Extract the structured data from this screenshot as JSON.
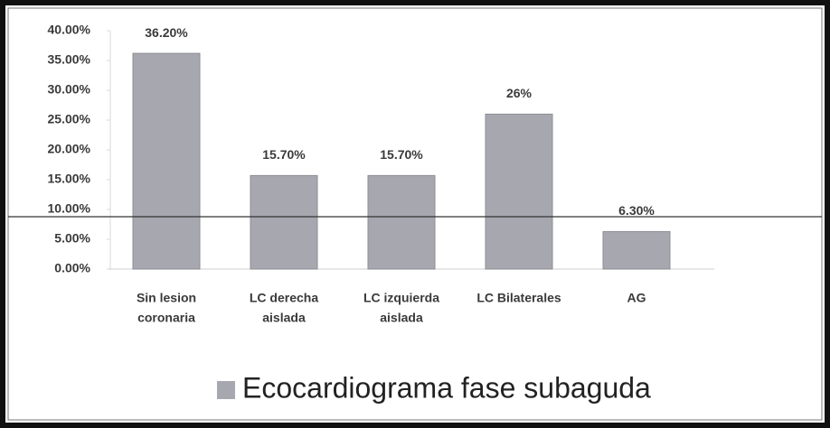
{
  "chart_data": {
    "type": "bar",
    "categories": [
      [
        "Sin lesion",
        "coronaria"
      ],
      [
        "LC derecha",
        "aislada"
      ],
      [
        "LC izquierda",
        "aislada"
      ],
      [
        "LC Bilaterales"
      ],
      [
        "AG"
      ]
    ],
    "series": [
      {
        "name": "Ecocardiograma fase subaguda",
        "color": "#a7a7af",
        "values": [
          36.2,
          15.7,
          15.7,
          26,
          6.3
        ],
        "value_labels": [
          "36.20%",
          "15.70%",
          "15.70%",
          "26%",
          "6.30%"
        ]
      }
    ],
    "ylim": [
      0,
      40
    ],
    "yticks": [
      {
        "value": 0,
        "label": "0.00%"
      },
      {
        "value": 5,
        "label": "5.00%"
      },
      {
        "value": 10,
        "label": "10.00%"
      },
      {
        "value": 15,
        "label": "15.00%"
      },
      {
        "value": 20,
        "label": "20.00%"
      },
      {
        "value": 25,
        "label": "25.00%"
      },
      {
        "value": 30,
        "label": "30.00%"
      },
      {
        "value": 35,
        "label": "35.00%"
      },
      {
        "value": 40,
        "label": "40.00%"
      }
    ],
    "grid": false
  }
}
